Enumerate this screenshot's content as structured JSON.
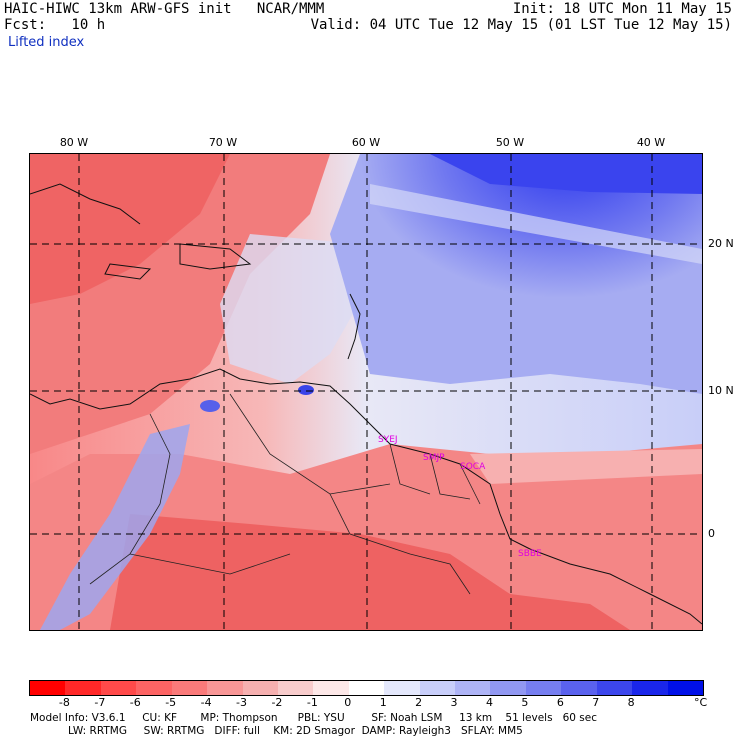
{
  "header": {
    "title": "HAIC-HIWC 13km ARW-GFS init   NCAR/MMM",
    "forecast": "Fcst:   10 h",
    "init": "Init: 18 UTC Mon 11 May 15",
    "valid": "Valid: 04 UTC Tue 12 May 15 (01 LST Tue 12 May 15)",
    "field": "Lifted index"
  },
  "axes": {
    "lon_labels": [
      "80 W",
      "70 W",
      "60 W",
      "50 W",
      "40 W"
    ],
    "lat_labels": [
      "20 N",
      "10 N",
      "0"
    ]
  },
  "stations": [
    "SYEJ",
    "SMJP",
    "SOCA",
    "SBBE"
  ],
  "colorbar": {
    "labels": [
      "-8",
      "-7",
      "-6",
      "-5",
      "-4",
      "-3",
      "-2",
      "-1",
      "0",
      "1",
      "2",
      "3",
      "4",
      "5",
      "6",
      "7",
      "8"
    ],
    "unit": "°C",
    "colors": [
      "#ff0000",
      "#ff2828",
      "#ff4a4a",
      "#fd6464",
      "#fa7a7a",
      "#f89696",
      "#f6b0b0",
      "#f8cccc",
      "#fde8e8",
      "#ffffff",
      "#e4e8fc",
      "#c8cefa",
      "#aeb4f6",
      "#9198f2",
      "#767ef0",
      "#5a62ee",
      "#3c46ec",
      "#1a26ea",
      "#0010e8"
    ]
  },
  "model_info": {
    "line1": "Model Info: V3.6.1     CU: KF       MP: Thompson      PBL: YSU        SF: Noah LSM     13 km    51 levels   60 sec",
    "line2": "LW: RRTMG     SW: RRTMG   DIFF: full    KM: 2D Smagor  DAMP: Rayleigh3   SFLAY: MM5"
  }
}
